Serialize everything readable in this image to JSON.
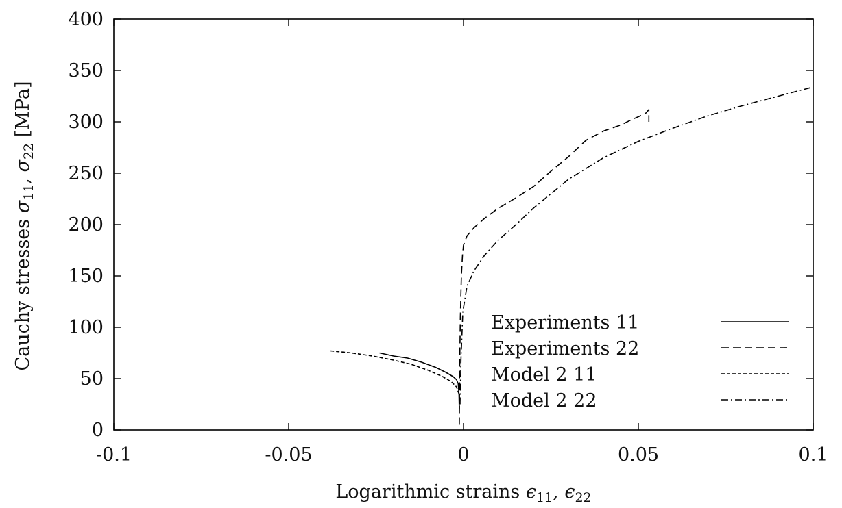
{
  "chart_data": {
    "type": "line",
    "xlabel_prefix": "Logarithmic strains ",
    "xlabel_sym1": "ϵ",
    "xlabel_sub1": "11",
    "xlabel_sep": ", ",
    "xlabel_sym2": "ϵ",
    "xlabel_sub2": "22",
    "ylabel_prefix": "Cauchy stresses ",
    "ylabel_sym1": "σ",
    "ylabel_sub1": "11",
    "ylabel_sep": ", ",
    "ylabel_sym2": "σ",
    "ylabel_sub2": "22",
    "ylabel_unit": " [MPa]",
    "xlim": [
      -0.1,
      0.1
    ],
    "ylim": [
      0,
      400
    ],
    "xticks": [
      -0.1,
      -0.05,
      0,
      0.05,
      0.1
    ],
    "xtick_labels": [
      "-0.1",
      "-0.05",
      "0",
      "0.05",
      "0.1"
    ],
    "yticks": [
      0,
      50,
      100,
      150,
      200,
      250,
      300,
      350,
      400
    ],
    "ytick_labels": [
      "0",
      "50",
      "100",
      "150",
      "200",
      "250",
      "300",
      "350",
      "400"
    ],
    "grid": false,
    "legend_position": "bottom-right",
    "series": [
      {
        "name": "Experiments 11",
        "dash": "solid",
        "x": [
          -0.024,
          -0.02,
          -0.016,
          -0.012,
          -0.008,
          -0.005,
          -0.003,
          -0.002,
          -0.0015,
          -0.0013,
          -0.0012
        ],
        "y": [
          75,
          72,
          70,
          66,
          61,
          56,
          52,
          49,
          45,
          35,
          20
        ]
      },
      {
        "name": "Experiments 22",
        "dash": "longdash",
        "x": [
          -0.0012,
          -0.0011,
          -0.0009,
          -0.0006,
          -0.0003,
          0.0,
          0.001,
          0.003,
          0.006,
          0.01,
          0.015,
          0.02,
          0.025,
          0.03,
          0.035,
          0.04,
          0.045,
          0.048,
          0.05,
          0.052,
          0.053,
          0.053
        ],
        "y": [
          5,
          60,
          110,
          150,
          170,
          180,
          189,
          197,
          206,
          216,
          226,
          237,
          252,
          266,
          282,
          291,
          297,
          302,
          305,
          308,
          312,
          300
        ]
      },
      {
        "name": "Model 2 11",
        "dash": "shortdash",
        "x": [
          -0.038,
          -0.032,
          -0.026,
          -0.02,
          -0.015,
          -0.01,
          -0.006,
          -0.0035,
          -0.002,
          -0.0013,
          -0.001
        ],
        "y": [
          77,
          75,
          72,
          68,
          64,
          58,
          52,
          47,
          42,
          35,
          25
        ]
      },
      {
        "name": "Model 2 22",
        "dash": "dashdot",
        "x": [
          -0.001,
          -0.0007,
          -0.0002,
          0.001,
          0.003,
          0.006,
          0.01,
          0.015,
          0.02,
          0.03,
          0.04,
          0.05,
          0.06,
          0.07,
          0.08,
          0.09,
          0.1
        ],
        "y": [
          25,
          70,
          115,
          140,
          155,
          170,
          185,
          200,
          216,
          244,
          265,
          281,
          294,
          306,
          316,
          325,
          334
        ]
      }
    ]
  }
}
